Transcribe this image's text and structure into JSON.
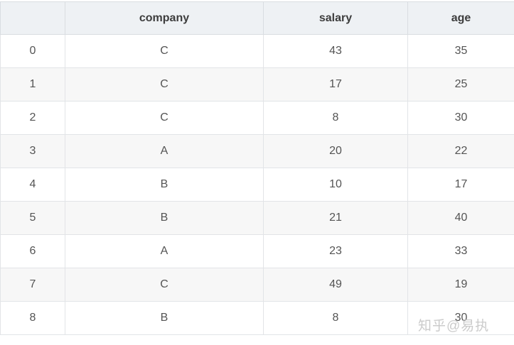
{
  "chart_data": {
    "type": "table",
    "title": "",
    "columns": [
      "",
      "company",
      "salary",
      "age"
    ],
    "rows": [
      [
        "0",
        "C",
        "43",
        "35"
      ],
      [
        "1",
        "C",
        "17",
        "25"
      ],
      [
        "2",
        "C",
        "8",
        "30"
      ],
      [
        "3",
        "A",
        "20",
        "22"
      ],
      [
        "4",
        "B",
        "10",
        "17"
      ],
      [
        "5",
        "B",
        "21",
        "40"
      ],
      [
        "6",
        "A",
        "23",
        "33"
      ],
      [
        "7",
        "C",
        "49",
        "19"
      ],
      [
        "8",
        "B",
        "8",
        "30"
      ]
    ],
    "layout": {
      "striped": true,
      "stripe_rows": "odd-indexed (1,3,5,7)",
      "all_cells_centered": true
    }
  },
  "watermark": {
    "text": "知乎@易执"
  },
  "colors": {
    "header_bg": "#eef1f4",
    "stripe_bg": "#f7f7f7",
    "row_bg": "#ffffff",
    "border": "#e2e4e7",
    "header_border": "#d9dde1",
    "header_text": "#3d3d3d",
    "cell_text": "#545454",
    "watermark_text": "#c6c6c6"
  }
}
